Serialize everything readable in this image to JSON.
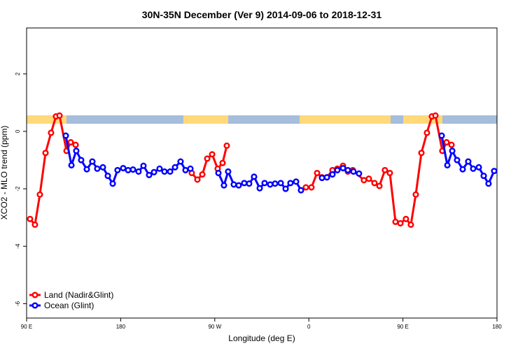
{
  "chart_data": {
    "type": "line",
    "title": "30N-35N December (Ver 9)   2014-09-06 to 2018-12-31",
    "x_label": "Longitude (deg E)",
    "y_label": "XCO2 - MLO trend (ppm)",
    "xlim": [
      90,
      540
    ],
    "ylim": [
      -6.5,
      3.6
    ],
    "xticks": [
      {
        "value": 90,
        "label": "90 E"
      },
      180,
      {
        "value": 270,
        "label": "90 W"
      },
      {
        "value": 360,
        "label": "0"
      },
      {
        "value": 450,
        "label": "90 E"
      },
      {
        "value": 540,
        "label": "180"
      }
    ],
    "yticks": [
      -6,
      -4,
      -2,
      0,
      2
    ],
    "legend": "bottom-left",
    "series": [
      {
        "name": "Land (Nadir&Glint)",
        "color": "#ff0000",
        "x": [
          93.3,
          98.0,
          102.7,
          108.1,
          113.4,
          118.1,
          121.5,
          128.2,
          132.2,
          136.9,
          null,
          248.0,
          253.4,
          258.1,
          262.8,
          267.5,
          272.8,
          277.5,
          281.5,
          null,
          357.2,
          362.5,
          367.9,
          372.6,
          377.3,
          382.6,
          387.3,
          392.7,
          397.3,
          402.0,
          412.7,
          417.4,
          422.8,
          427.5,
          432.8,
          437.5,
          442.9,
          447.6,
          452.9,
          457.6,
          462.3,
          467.7,
          473.0,
          477.7,
          481.1,
          487.7,
          491.8,
          496.5
        ],
        "values": [
          -3.05,
          -3.25,
          -2.2,
          -0.75,
          -0.05,
          0.52,
          0.55,
          -0.68,
          -0.38,
          -0.47,
          null,
          -1.45,
          -1.68,
          -1.5,
          -0.95,
          -0.8,
          -1.3,
          -1.1,
          -0.5,
          null,
          -1.95,
          -1.95,
          -1.45,
          -1.6,
          -1.6,
          -1.35,
          -1.3,
          -1.2,
          -1.4,
          -1.35,
          -1.7,
          -1.65,
          -1.8,
          -1.9,
          -1.35,
          -1.45,
          -3.15,
          -3.2,
          -3.05,
          -3.25,
          -2.2,
          -0.75,
          -0.05,
          0.52,
          0.55,
          -0.68,
          -0.38,
          -0.47
        ]
      },
      {
        "name": "Ocean (Glint)",
        "color": "#0000ff",
        "x": [
          127.5,
          132.9,
          137.5,
          142.2,
          147.6,
          152.9,
          157.6,
          163.0,
          167.7,
          172.4,
          177.0,
          182.4,
          187.1,
          191.8,
          197.1,
          201.8,
          207.2,
          211.9,
          217.2,
          221.9,
          227.3,
          232.0,
          237.3,
          242.0,
          246.7,
          null,
          273.5,
          278.8,
          282.8,
          288.2,
          292.9,
          298.2,
          302.9,
          307.6,
          313.0,
          317.7,
          323.0,
          327.7,
          333.1,
          337.8,
          342.4,
          347.8,
          352.5,
          null,
          372.6,
          377.3,
          382.6,
          387.3,
          392.7,
          397.3,
          402.7,
          408.0,
          null,
          487.1,
          492.5,
          497.2,
          501.8,
          507.2,
          512.5,
          517.2,
          522.6,
          527.3,
          531.9,
          537.3
        ],
        "values": [
          -0.15,
          -1.18,
          -0.68,
          -1.0,
          -1.32,
          -1.05,
          -1.3,
          -1.25,
          -1.55,
          -1.82,
          -1.35,
          -1.28,
          -1.35,
          -1.33,
          -1.4,
          -1.2,
          -1.52,
          -1.42,
          -1.3,
          -1.4,
          -1.4,
          -1.25,
          -1.05,
          -1.35,
          -1.3,
          null,
          -1.45,
          -1.88,
          -1.4,
          -1.85,
          -1.88,
          -1.8,
          -1.82,
          -1.58,
          -1.98,
          -1.8,
          -1.85,
          -1.82,
          -1.8,
          -2.0,
          -1.8,
          -1.75,
          -2.05,
          null,
          -1.62,
          -1.6,
          -1.5,
          -1.35,
          -1.28,
          -1.35,
          -1.4,
          -1.47,
          null,
          -0.15,
          -1.18,
          -0.68,
          -1.0,
          -1.32,
          -1.05,
          -1.3,
          -1.25,
          -1.55,
          -1.82,
          -1.38
        ]
      }
    ]
  }
}
